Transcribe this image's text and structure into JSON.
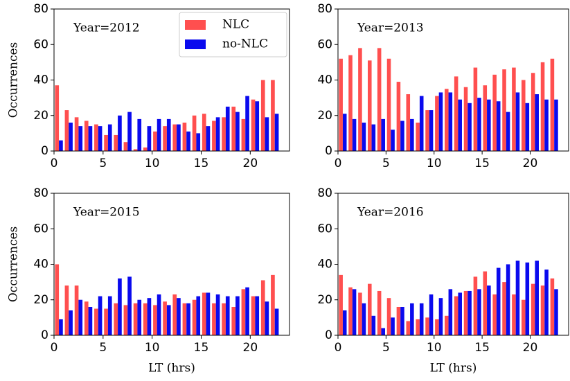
{
  "chart_data": [
    {
      "type": "bar",
      "annotation": "Year=2012",
      "ylabel": "Occurrences",
      "legend": "upper right",
      "x": [
        0.5,
        1.5,
        2.5,
        3.5,
        4.5,
        5.5,
        6.5,
        7.5,
        8.5,
        9.5,
        10.5,
        11.5,
        12.5,
        13.5,
        14.5,
        15.5,
        16.5,
        17.5,
        18.5,
        19.5,
        20.5,
        21.5,
        22.5
      ],
      "series": [
        {
          "name": "NLC",
          "color": "#ff4f4f",
          "values": [
            37,
            23,
            19,
            17,
            15,
            9,
            9,
            5,
            1,
            2,
            11,
            14,
            15,
            16,
            20,
            21,
            17,
            19,
            25,
            18,
            29,
            40,
            40
          ]
        },
        {
          "name": "no-NLC",
          "color": "#0a0aee",
          "values": [
            6,
            16,
            14,
            14,
            14,
            15,
            20,
            22,
            18,
            14,
            18,
            18,
            15,
            11,
            10,
            14,
            19,
            25,
            22,
            31,
            28,
            19,
            21
          ]
        }
      ],
      "xlim": [
        0,
        24
      ],
      "ylim": [
        0,
        80
      ],
      "xticks": [
        0,
        5,
        10,
        15,
        20
      ],
      "yticks": [
        0,
        20,
        40,
        60,
        80
      ]
    },
    {
      "type": "bar",
      "annotation": "Year=2013",
      "x": [
        0.5,
        1.5,
        2.5,
        3.5,
        4.5,
        5.5,
        6.5,
        7.5,
        8.5,
        9.5,
        10.5,
        11.5,
        12.5,
        13.5,
        14.5,
        15.5,
        16.5,
        17.5,
        18.5,
        19.5,
        20.5,
        21.5,
        22.5
      ],
      "series": [
        {
          "color": "#ff4f4f",
          "values": [
            52,
            54,
            58,
            51,
            58,
            52,
            39,
            32,
            16,
            23,
            31,
            35,
            42,
            36,
            47,
            37,
            43,
            46,
            47,
            40,
            44,
            50,
            52
          ]
        },
        {
          "color": "#0a0aee",
          "values": [
            21,
            18,
            16,
            15,
            18,
            12,
            17,
            18,
            31,
            23,
            33,
            33,
            29,
            27,
            30,
            29,
            28,
            22,
            33,
            27,
            32,
            29,
            29
          ]
        }
      ],
      "xlim": [
        0,
        24
      ],
      "ylim": [
        0,
        80
      ],
      "xticks": [
        0,
        5,
        10,
        15,
        20
      ],
      "yticks": [
        0,
        20,
        40,
        60,
        80
      ]
    },
    {
      "type": "bar",
      "annotation": "Year=2015",
      "ylabel": "Occurrences",
      "xlabel": "LT (hrs)",
      "x": [
        0.5,
        1.5,
        2.5,
        3.5,
        4.5,
        5.5,
        6.5,
        7.5,
        8.5,
        9.5,
        10.5,
        11.5,
        12.5,
        13.5,
        14.5,
        15.5,
        16.5,
        17.5,
        18.5,
        19.5,
        20.5,
        21.5,
        22.5
      ],
      "series": [
        {
          "color": "#ff4f4f",
          "values": [
            40,
            28,
            28,
            19,
            15,
            15,
            18,
            17,
            18,
            18,
            17,
            19,
            23,
            18,
            20,
            24,
            18,
            18,
            16,
            26,
            22,
            31,
            34
          ]
        },
        {
          "color": "#0a0aee",
          "values": [
            9,
            14,
            20,
            16,
            22,
            22,
            32,
            33,
            20,
            21,
            23,
            17,
            21,
            18,
            22,
            24,
            23,
            22,
            22,
            27,
            22,
            19,
            15
          ]
        }
      ],
      "xlim": [
        0,
        24
      ],
      "ylim": [
        0,
        80
      ],
      "xticks": [
        0,
        5,
        10,
        15,
        20
      ],
      "yticks": [
        0,
        20,
        40,
        60,
        80
      ]
    },
    {
      "type": "bar",
      "annotation": "Year=2016",
      "xlabel": "LT (hrs)",
      "x": [
        0.5,
        1.5,
        2.5,
        3.5,
        4.5,
        5.5,
        6.5,
        7.5,
        8.5,
        9.5,
        10.5,
        11.5,
        12.5,
        13.5,
        14.5,
        15.5,
        16.5,
        17.5,
        18.5,
        19.5,
        20.5,
        21.5,
        22.5
      ],
      "series": [
        {
          "color": "#ff4f4f",
          "values": [
            34,
            27,
            24,
            29,
            25,
            21,
            16,
            8,
            9,
            10,
            9,
            11,
            22,
            25,
            33,
            36,
            23,
            30,
            23,
            20,
            29,
            28,
            32
          ]
        },
        {
          "color": "#0a0aee",
          "values": [
            14,
            26,
            18,
            11,
            4,
            10,
            16,
            18,
            18,
            23,
            21,
            26,
            24,
            25,
            26,
            28,
            38,
            40,
            42,
            41,
            42,
            37,
            26
          ]
        }
      ],
      "xlim": [
        0,
        24
      ],
      "ylim": [
        0,
        80
      ],
      "xticks": [
        0,
        5,
        10,
        15,
        20
      ],
      "yticks": [
        0,
        20,
        40,
        60,
        80
      ]
    }
  ]
}
